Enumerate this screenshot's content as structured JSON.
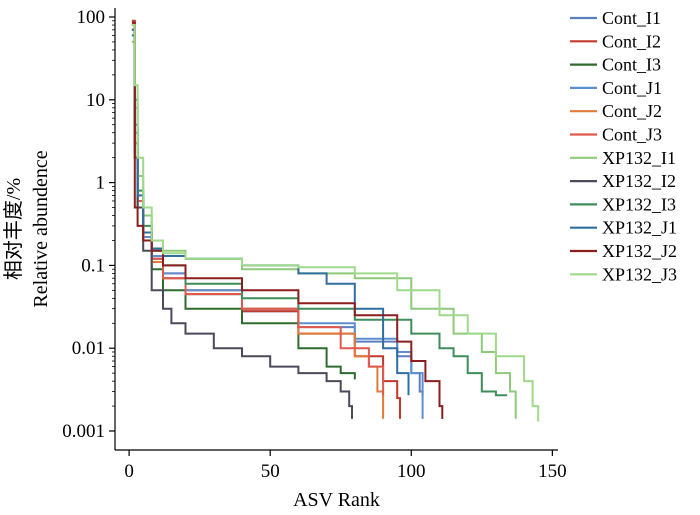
{
  "chart_data": {
    "type": "line",
    "xlabel": "ASV Rank",
    "ylabel_cn": "相对丰度/%",
    "ylabel_en": "Relative abundence",
    "xlim": [
      -5,
      152
    ],
    "ylim": [
      0.001,
      100
    ],
    "yscale": "log",
    "xticks": [
      0,
      50,
      100,
      150
    ],
    "xtick_labels": [
      "0",
      "50",
      "100",
      "150"
    ],
    "yticks": [
      0.001,
      0.01,
      0.1,
      1,
      10,
      100
    ],
    "ytick_labels": [
      "0.001",
      "0.01",
      "0.1",
      "1",
      "10",
      "100"
    ],
    "grid": false,
    "legend_position": "right",
    "series": [
      {
        "name": "Cont_I1",
        "color": "#5b7fbf",
        "x": [
          1,
          2,
          3,
          5,
          8,
          12,
          20,
          40,
          60,
          80,
          95,
          100,
          103,
          104
        ],
        "y": [
          60,
          3,
          0.6,
          0.25,
          0.12,
          0.07,
          0.045,
          0.028,
          0.018,
          0.012,
          0.008,
          0.005,
          0.003,
          0.0027
        ]
      },
      {
        "name": "Cont_I2",
        "color": "#c0392b",
        "x": [
          1,
          2,
          3,
          5,
          8,
          12,
          20,
          40,
          60,
          80,
          90,
          95,
          96
        ],
        "y": [
          90,
          2,
          0.5,
          0.25,
          0.12,
          0.08,
          0.05,
          0.028,
          0.015,
          0.008,
          0.004,
          0.0025,
          0.0014
        ]
      },
      {
        "name": "Cont_I3",
        "color": "#2e6b2e",
        "x": [
          1,
          2,
          3,
          5,
          8,
          12,
          20,
          40,
          60,
          70,
          75,
          80
        ],
        "y": [
          70,
          3,
          0.6,
          0.2,
          0.09,
          0.05,
          0.03,
          0.02,
          0.01,
          0.006,
          0.005,
          0.0042
        ]
      },
      {
        "name": "Cont_J1",
        "color": "#5b8fd0",
        "x": [
          1,
          2,
          3,
          5,
          8,
          12,
          20,
          40,
          60,
          80,
          95,
          100,
          104
        ],
        "y": [
          80,
          4,
          0.5,
          0.22,
          0.13,
          0.08,
          0.05,
          0.03,
          0.02,
          0.013,
          0.009,
          0.005,
          0.0014
        ]
      },
      {
        "name": "Cont_J2",
        "color": "#e07b39",
        "x": [
          1,
          2,
          3,
          5,
          8,
          12,
          20,
          40,
          60,
          80,
          85,
          88,
          90
        ],
        "y": [
          70,
          3,
          0.5,
          0.2,
          0.11,
          0.07,
          0.045,
          0.03,
          0.015,
          0.008,
          0.006,
          0.003,
          0.0014
        ]
      },
      {
        "name": "Cont_J3",
        "color": "#e0584e",
        "x": [
          1,
          2,
          3,
          5,
          8,
          12,
          20,
          40,
          60,
          75,
          85,
          90
        ],
        "y": [
          85,
          2,
          0.6,
          0.25,
          0.12,
          0.07,
          0.045,
          0.03,
          0.018,
          0.01,
          0.006,
          0.0027
        ]
      },
      {
        "name": "XP132_I1",
        "color": "#8fc97a",
        "x": [
          1,
          2,
          3,
          5,
          8,
          12,
          20,
          40,
          60,
          80,
          100,
          115,
          125,
          130,
          135,
          137
        ],
        "y": [
          50,
          8,
          1.2,
          0.4,
          0.2,
          0.15,
          0.12,
          0.09,
          0.08,
          0.07,
          0.03,
          0.015,
          0.009,
          0.005,
          0.003,
          0.0014
        ]
      },
      {
        "name": "XP132_I2",
        "color": "#4a4a5a",
        "x": [
          1,
          2,
          3,
          5,
          8,
          12,
          15,
          20,
          30,
          40,
          50,
          60,
          70,
          75,
          78,
          79
        ],
        "y": [
          80,
          2,
          0.5,
          0.15,
          0.05,
          0.03,
          0.02,
          0.015,
          0.01,
          0.008,
          0.006,
          0.005,
          0.004,
          0.003,
          0.002,
          0.0014
        ]
      },
      {
        "name": "XP132_I3",
        "color": "#3e8e5a",
        "x": [
          1,
          2,
          3,
          5,
          8,
          12,
          20,
          40,
          60,
          80,
          100,
          110,
          115,
          120,
          125,
          130,
          134
        ],
        "y": [
          60,
          10,
          0.8,
          0.3,
          0.15,
          0.1,
          0.06,
          0.04,
          0.03,
          0.022,
          0.015,
          0.01,
          0.008,
          0.005,
          0.003,
          0.0027,
          0.0027
        ]
      },
      {
        "name": "XP132_J1",
        "color": "#2f6fa0",
        "x": [
          1,
          2,
          3,
          5,
          8,
          12,
          20,
          40,
          60,
          70,
          80,
          90,
          95,
          99
        ],
        "y": [
          70,
          5,
          0.7,
          0.25,
          0.16,
          0.13,
          0.12,
          0.1,
          0.08,
          0.06,
          0.03,
          0.01,
          0.005,
          0.0027
        ]
      },
      {
        "name": "XP132_J2",
        "color": "#8b1e1e",
        "x": [
          1,
          2,
          3,
          5,
          8,
          12,
          20,
          40,
          60,
          80,
          95,
          100,
          105,
          110,
          111
        ],
        "y": [
          85,
          0.5,
          0.3,
          0.2,
          0.15,
          0.1,
          0.07,
          0.05,
          0.035,
          0.025,
          0.012,
          0.007,
          0.004,
          0.002,
          0.0014
        ]
      },
      {
        "name": "XP132_J3",
        "color": "#9fd98a",
        "x": [
          1,
          2,
          3,
          5,
          8,
          12,
          20,
          40,
          60,
          80,
          95,
          110,
          120,
          130,
          140,
          143,
          145
        ],
        "y": [
          80,
          15,
          2,
          0.5,
          0.2,
          0.14,
          0.12,
          0.1,
          0.095,
          0.08,
          0.05,
          0.025,
          0.015,
          0.008,
          0.004,
          0.002,
          0.0013
        ]
      }
    ]
  }
}
